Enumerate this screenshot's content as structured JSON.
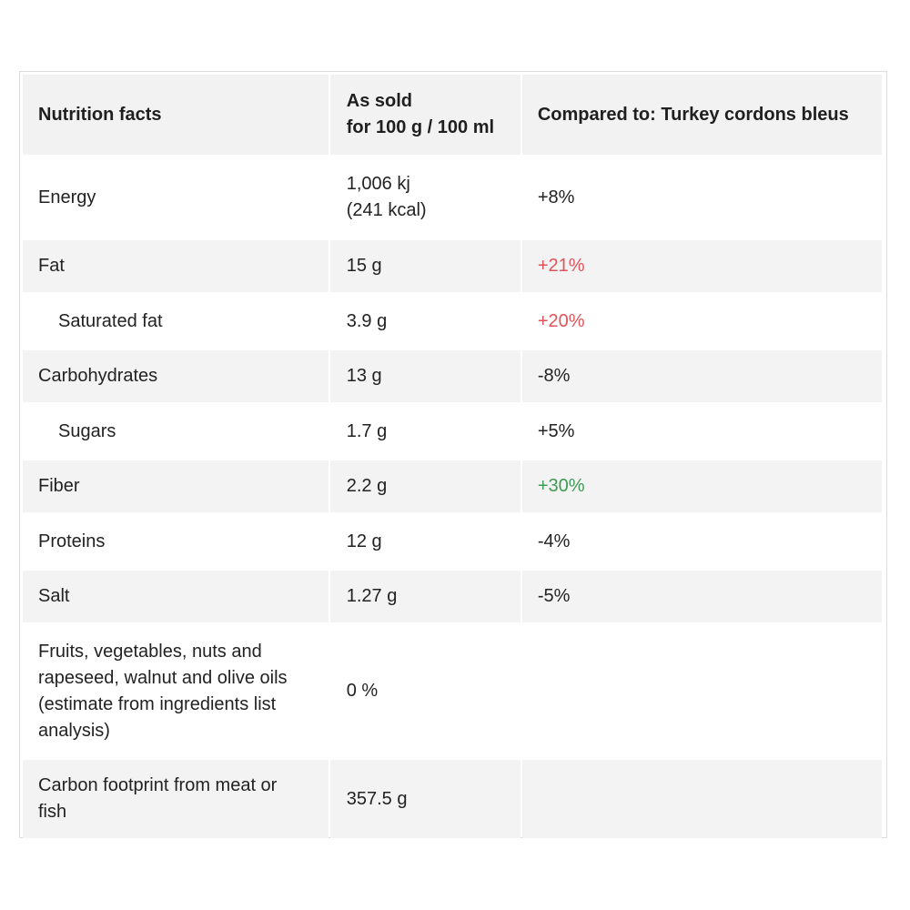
{
  "table": {
    "headers": {
      "col1": "Nutrition facts",
      "col2_line1": "As sold",
      "col2_line2": "for 100 g / 100 ml",
      "col3": "Compared to: Turkey cordons bleus"
    },
    "rows": [
      {
        "name": "Energy",
        "value_line1": "1,006 kj",
        "value_line2": "(241 kcal)",
        "compare": "+8%",
        "compare_status": "neutral"
      },
      {
        "name": "Fat",
        "value": "15 g",
        "compare": "+21%",
        "compare_status": "bad"
      },
      {
        "name": "Saturated fat",
        "value": "3.9 g",
        "compare": "+20%",
        "compare_status": "bad"
      },
      {
        "name": "Carbohydrates",
        "value": "13 g",
        "compare": "-8%",
        "compare_status": "neutral"
      },
      {
        "name": "Sugars",
        "value": "1.7 g",
        "compare": "+5%",
        "compare_status": "neutral"
      },
      {
        "name": "Fiber",
        "value": "2.2 g",
        "compare": "+30%",
        "compare_status": "good"
      },
      {
        "name": "Proteins",
        "value": "12 g",
        "compare": "-4%",
        "compare_status": "neutral"
      },
      {
        "name": "Salt",
        "value": "1.27 g",
        "compare": "-5%",
        "compare_status": "neutral"
      },
      {
        "name": "Fruits, vegetables, nuts and rapeseed, walnut and olive oils (estimate from ingredients list analysis)",
        "value": "0 %",
        "compare": ""
      },
      {
        "name": "Carbon footprint from meat or fish",
        "value": "357.5 g",
        "compare": ""
      }
    ]
  },
  "colors": {
    "bad": "#e0535a",
    "good": "#3f9a55",
    "neutral": "#222222",
    "header_bg": "#f2f2f2",
    "stripe_bg": "#f3f3f3"
  }
}
